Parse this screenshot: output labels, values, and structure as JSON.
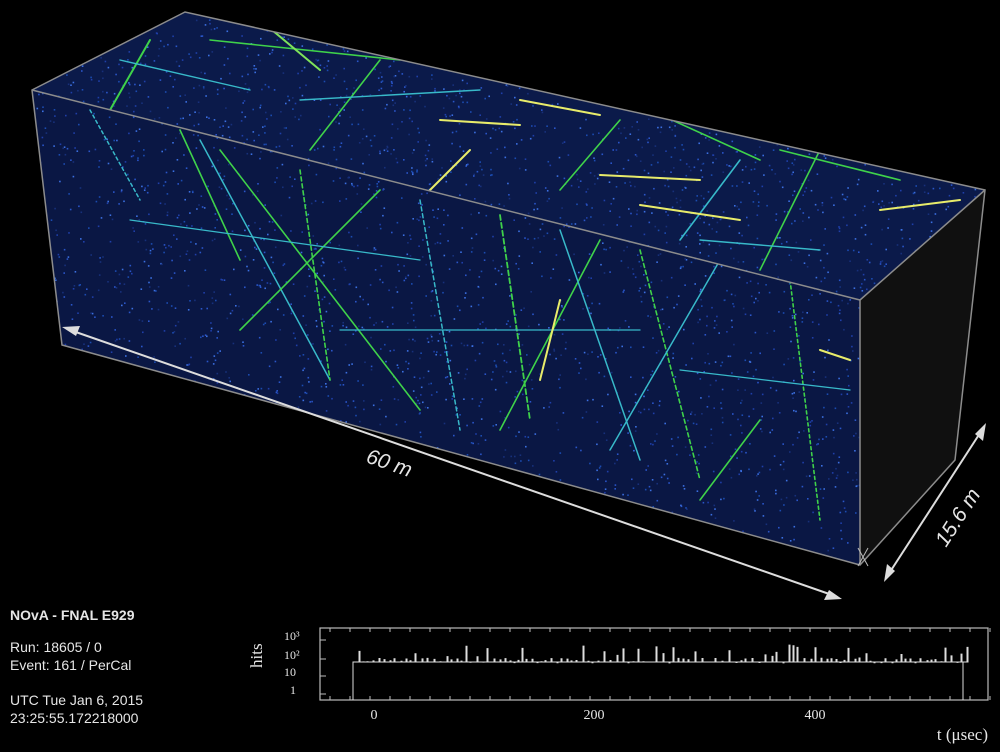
{
  "detector": {
    "length_label": "60 m",
    "width_label": "15.6 m"
  },
  "event_info": {
    "title": "NOvA - FNAL E929",
    "run": "Run:   18605 / 0",
    "event": "Event: 161 / PerCal",
    "utc_date": "UTC Tue Jan 6, 2015",
    "utc_time": "23:25:55.172218000"
  },
  "histogram": {
    "ylabel": "hits",
    "xlabel": "t (μsec)",
    "y_ticks": [
      "10³",
      "10²",
      "10",
      "1"
    ],
    "x_ticks": [
      "0",
      "200",
      "400"
    ],
    "x_tick_values": [
      0,
      200,
      400
    ],
    "x_range": [
      -20,
      540
    ]
  },
  "colors": {
    "background": "#000000",
    "detector_fill": "#0b1a4a",
    "hit_blue": "#2a55c8",
    "track_green": "#3fd24a",
    "track_cyan": "#38b9c9",
    "track_yellow": "#e8ec6a",
    "edge": "#8c8c8c"
  }
}
